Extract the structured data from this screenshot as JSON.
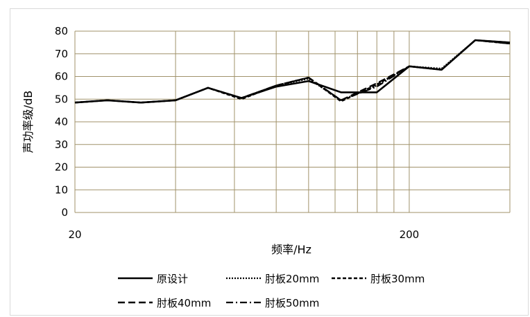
{
  "chart_data": {
    "type": "line",
    "title": "",
    "xlabel": "频率/Hz",
    "ylabel": "声功率级/dB",
    "x_scale": "log",
    "xlim": [
      20,
      400
    ],
    "ylim": [
      0,
      80
    ],
    "y_ticks": [
      0,
      10,
      20,
      30,
      40,
      50,
      60,
      70,
      80
    ],
    "x_tick_labels": [
      {
        "value": 20,
        "label": "20"
      },
      {
        "value": 200,
        "label": "200"
      }
    ],
    "x_gridlines": [
      40,
      60,
      80,
      100,
      120,
      140,
      160,
      180,
      200,
      400
    ],
    "grid": true,
    "grid_color": "#a0926a",
    "legend_position": "bottom",
    "x": [
      20,
      25,
      31.5,
      40,
      50,
      63,
      80,
      100,
      125,
      160,
      200,
      250,
      315,
      400
    ],
    "series": [
      {
        "name": "原设计",
        "style": "solid",
        "values": [
          48.5,
          49.5,
          48.5,
          49.5,
          55,
          50.5,
          55.5,
          58,
          53,
          53,
          64.5,
          63,
          76,
          75
        ]
      },
      {
        "name": "肘板20mm",
        "style": "dotted",
        "values": [
          48.5,
          49.5,
          48.5,
          49.5,
          55,
          50.5,
          56,
          59,
          49.5,
          56,
          64.5,
          63.5,
          76,
          74.5
        ]
      },
      {
        "name": "肘板30mm",
        "style": "short-dash",
        "values": [
          48.5,
          49.5,
          48.5,
          49.5,
          55,
          50,
          56,
          59.5,
          49,
          56.5,
          64.5,
          63,
          76,
          74.5
        ]
      },
      {
        "name": "肘板40mm",
        "style": "long-dash",
        "values": [
          48.5,
          49.5,
          48.5,
          49.5,
          55,
          50.5,
          56,
          59.5,
          49.5,
          57,
          64.5,
          63,
          76,
          75
        ]
      },
      {
        "name": "肘板50mm",
        "style": "dash-dot",
        "values": [
          48.5,
          49.5,
          48.5,
          49.5,
          55,
          50.5,
          56,
          59.5,
          49.5,
          55.5,
          64.5,
          63,
          76,
          74.5
        ]
      }
    ]
  }
}
